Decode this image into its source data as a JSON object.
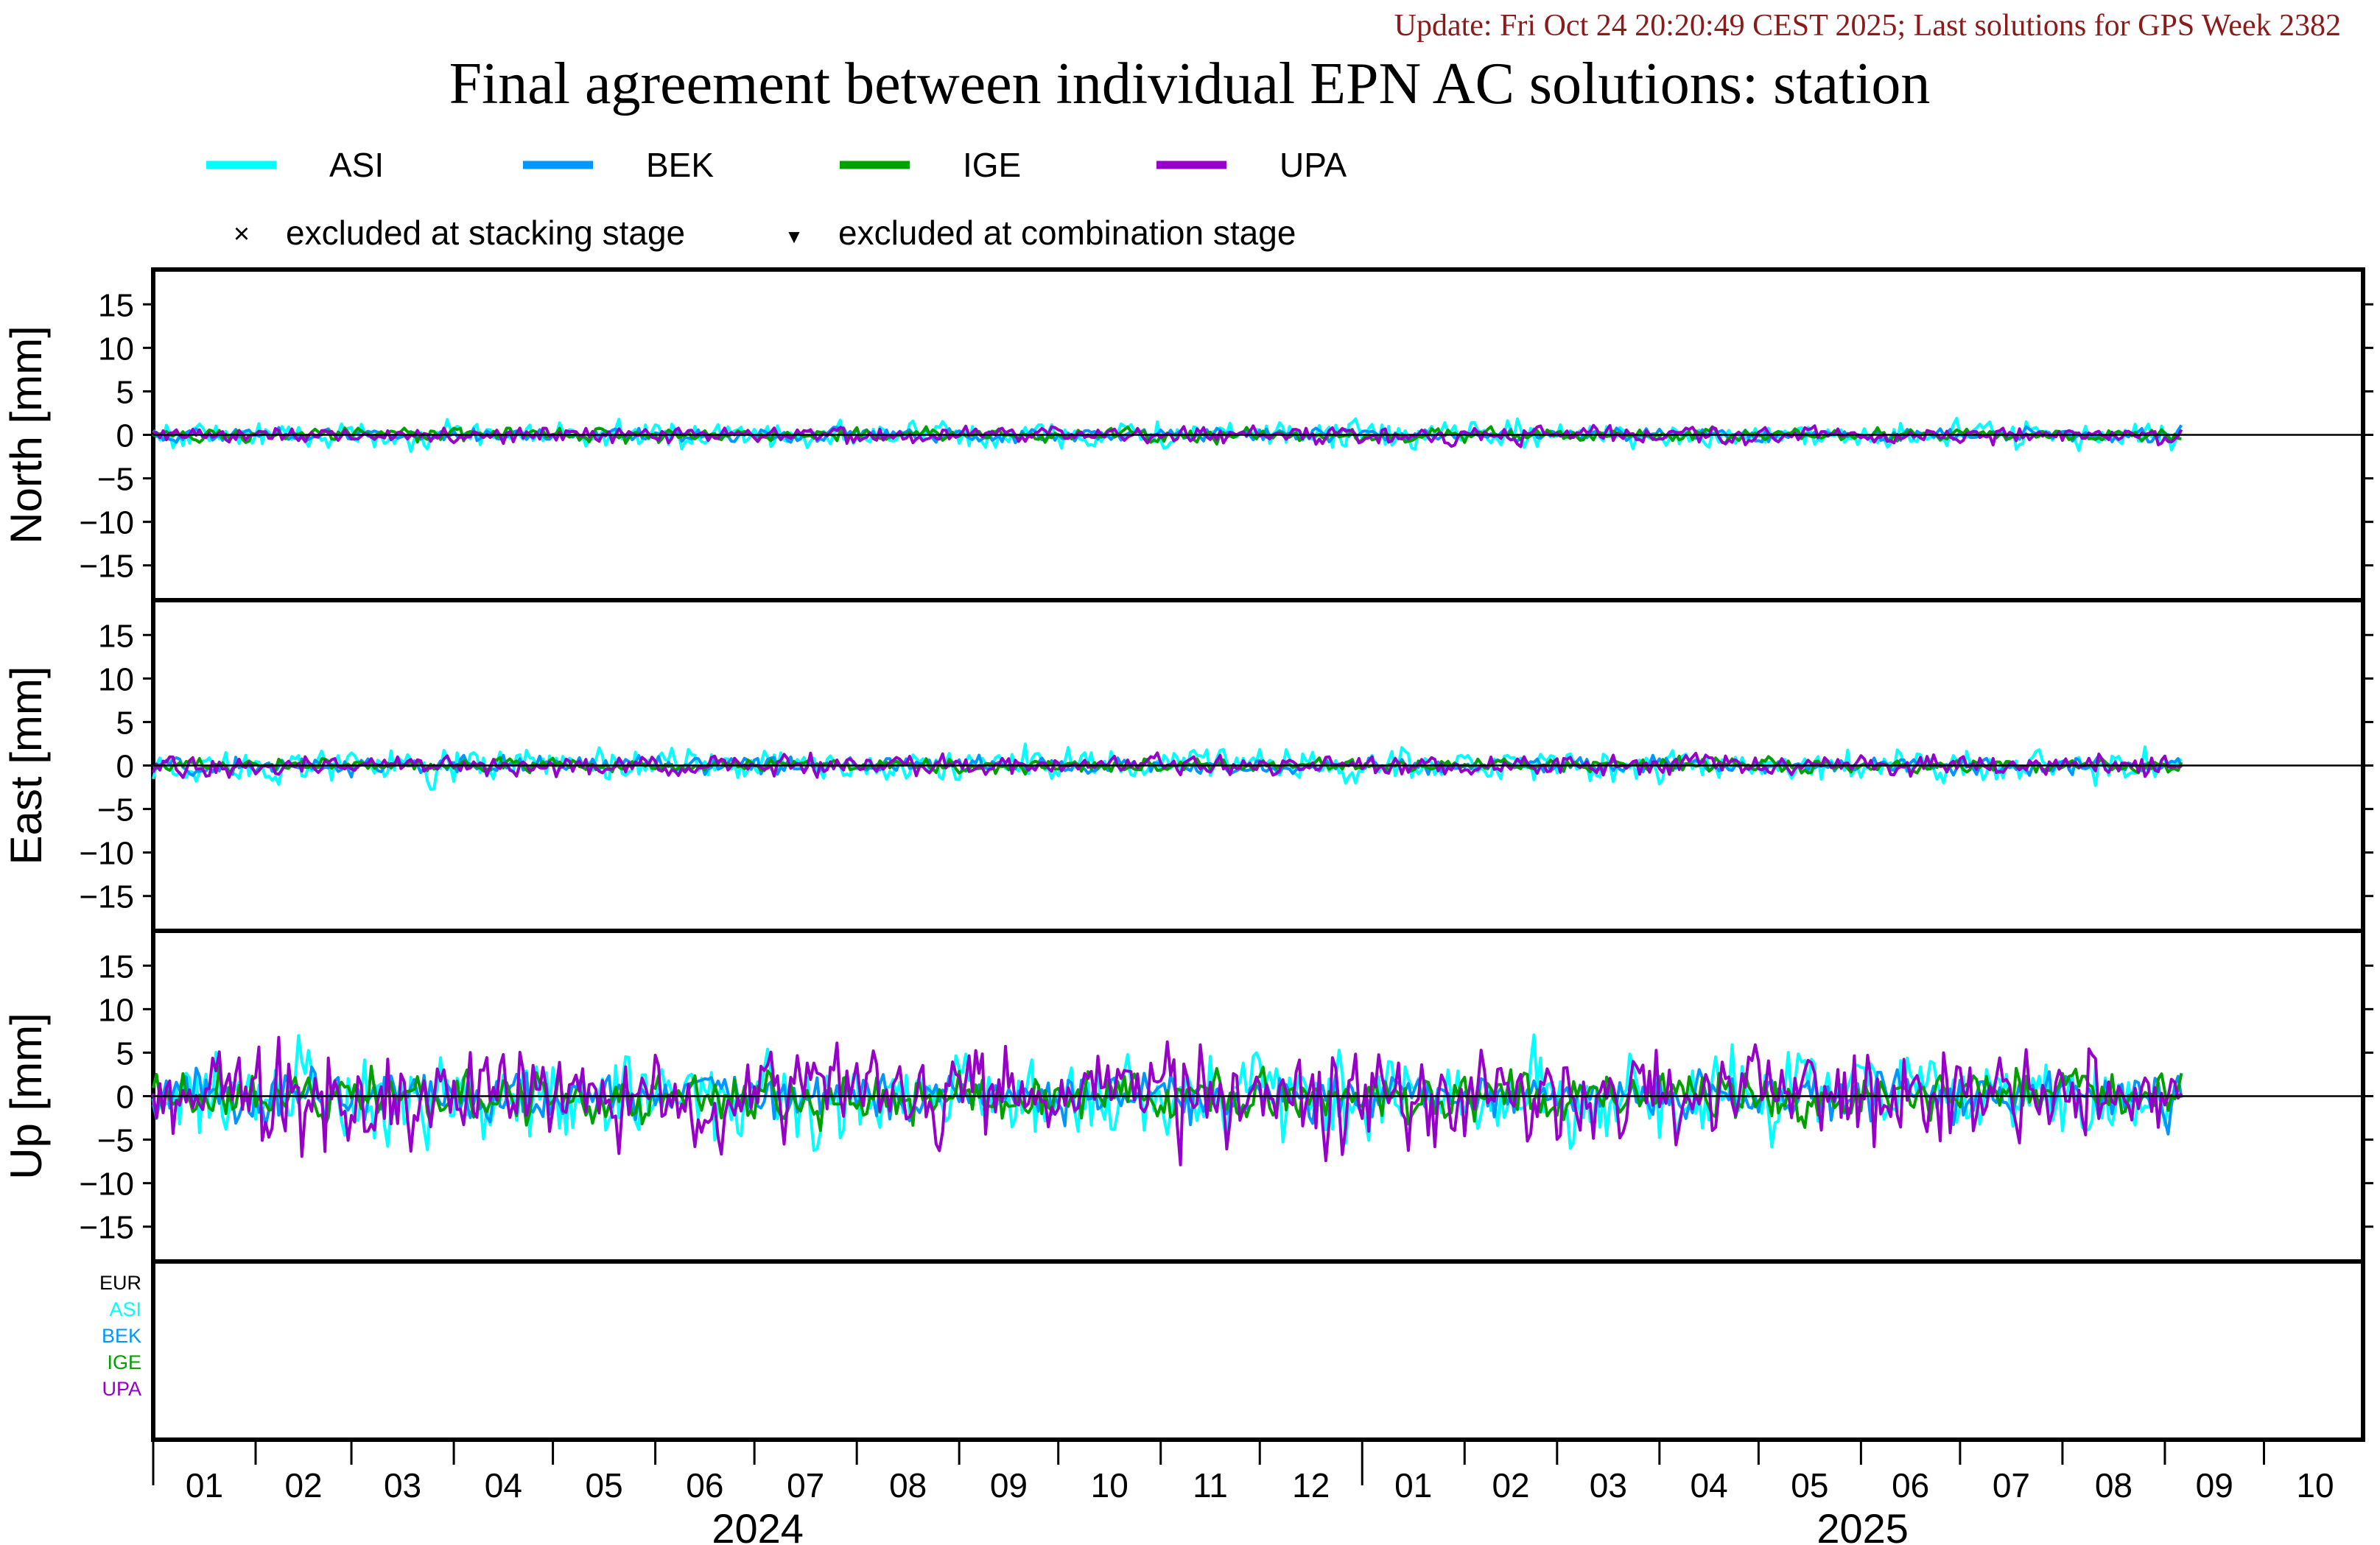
{
  "header": {
    "update_text": "Update: Fri Oct 24 20:20:49 CEST 2025; Last solutions for GPS Week 2382",
    "title": "Final agreement between individual EPN AC solutions: station"
  },
  "legend": {
    "series": [
      {
        "name": "ASI",
        "color": "#00FFFF"
      },
      {
        "name": "BEK",
        "color": "#0096FF"
      },
      {
        "name": "IGE",
        "color": "#00A000"
      },
      {
        "name": "UPA",
        "color": "#9600C8"
      }
    ],
    "markers": [
      {
        "symbol": "×",
        "label": "excluded at stacking stage"
      },
      {
        "symbol": "▼",
        "label": "excluded at combination stage"
      }
    ]
  },
  "bottom_panel_labels": [
    {
      "text": "EUR",
      "color": "#000000"
    },
    {
      "text": "ASI",
      "color": "#00FFFF"
    },
    {
      "text": "BEK",
      "color": "#0096FF"
    },
    {
      "text": "IGE",
      "color": "#00A000"
    },
    {
      "text": "UPA",
      "color": "#9600C8"
    }
  ],
  "chart_data": {
    "type": "line",
    "x_axis": {
      "start": "2024-01",
      "end": "2025-10",
      "month_tick_labels": [
        "01",
        "02",
        "03",
        "04",
        "05",
        "06",
        "07",
        "08",
        "09",
        "10",
        "11",
        "12",
        "01",
        "02",
        "03",
        "04",
        "05",
        "06",
        "07",
        "08",
        "09",
        "10"
      ],
      "year_labels": [
        "2024",
        "2025"
      ],
      "data_range": [
        "2024-01-01",
        "2025-09-06"
      ]
    },
    "y_ticks": [
      15,
      10,
      5,
      0,
      -5,
      -10,
      -15
    ],
    "y_tick_labels": [
      "15",
      "10",
      "5",
      "0",
      "−5",
      "−10",
      "−15"
    ],
    "panels": [
      {
        "ylabel": "North [mm]",
        "ylim": [
          -19,
          19
        ],
        "series": [
          {
            "name": "ASI",
            "amplitude_mm": 0.8
          },
          {
            "name": "BEK",
            "amplitude_mm": 0.4
          },
          {
            "name": "IGE",
            "amplitude_mm": 0.4
          },
          {
            "name": "UPA",
            "amplitude_mm": 0.5
          }
        ]
      },
      {
        "ylabel": "East [mm]",
        "ylim": [
          -19,
          19
        ],
        "series": [
          {
            "name": "ASI",
            "amplitude_mm": 1.0
          },
          {
            "name": "BEK",
            "amplitude_mm": 0.5
          },
          {
            "name": "IGE",
            "amplitude_mm": 0.4
          },
          {
            "name": "UPA",
            "amplitude_mm": 0.6
          }
        ]
      },
      {
        "ylabel": "Up [mm]",
        "ylim": [
          -19,
          19
        ],
        "series": [
          {
            "name": "ASI",
            "amplitude_mm": 2.5
          },
          {
            "name": "BEK",
            "amplitude_mm": 1.5
          },
          {
            "name": "IGE",
            "amplitude_mm": 1.5
          },
          {
            "name": "UPA",
            "amplitude_mm": 3.0
          }
        ]
      }
    ],
    "grid": false,
    "legend_position": "top"
  }
}
